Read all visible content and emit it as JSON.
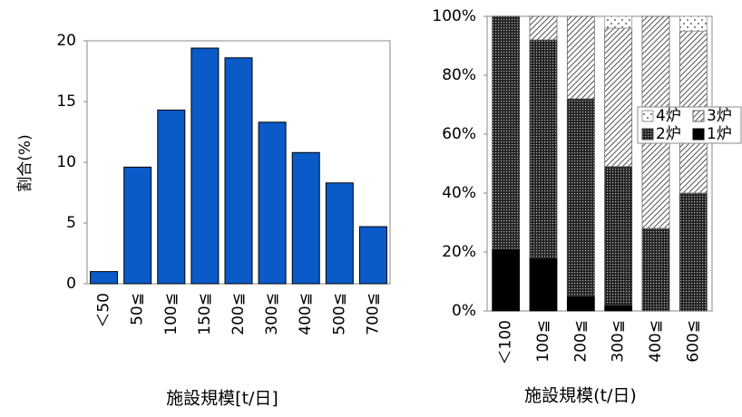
{
  "chart_data": [
    {
      "type": "bar",
      "y_label": "割合(%)",
      "x_label": "施設規模[t/日]",
      "categories": [
        "＜50",
        "50≦",
        "100≦",
        "150≦",
        "200≦",
        "300≦",
        "400≦",
        "500≦",
        "700≦"
      ],
      "values": [
        1.0,
        9.6,
        14.3,
        19.4,
        18.6,
        13.3,
        10.8,
        8.3,
        4.7
      ],
      "color": "#0a5ac8",
      "ylim": [
        0,
        20
      ],
      "yticks": [
        0,
        5,
        10,
        15,
        20
      ]
    },
    {
      "type": "stacked_bar",
      "x_label": "施設規模(t/日)",
      "categories": [
        "＜100",
        "100≦",
        "200≦",
        "300≦",
        "400≦",
        "600≦"
      ],
      "series": [
        {
          "name": "1炉",
          "color": "#000000",
          "values": [
            21,
            18,
            5,
            2,
            0,
            0
          ]
        },
        {
          "name": "2炉",
          "color": "#444444",
          "values": [
            79,
            74,
            67,
            47,
            28,
            40
          ]
        },
        {
          "name": "3炉",
          "color": "#666666",
          "values": [
            0,
            8,
            28,
            47,
            72,
            55
          ]
        },
        {
          "name": "4炉",
          "color": "#999999",
          "values": [
            0,
            0,
            0,
            4,
            0,
            5
          ]
        }
      ],
      "ylim": [
        0,
        100
      ],
      "yticks": [
        {
          "value": 0,
          "label": "0%"
        },
        {
          "value": 20,
          "label": "20%"
        },
        {
          "value": 40,
          "label": "40%"
        },
        {
          "value": 60,
          "label": "60%"
        },
        {
          "value": 80,
          "label": "80%"
        },
        {
          "value": 100,
          "label": "100%"
        }
      ]
    }
  ]
}
